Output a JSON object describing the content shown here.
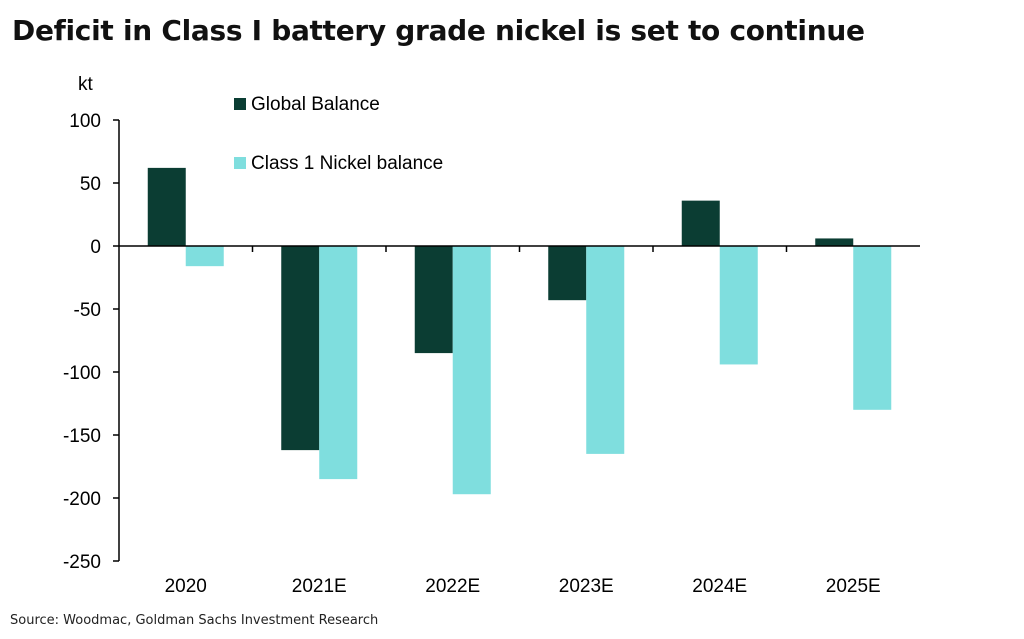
{
  "title": "Deficit in Class I battery grade nickel is set to continue",
  "source": "Source: Woodmac, Goldman Sachs Investment Research",
  "colors": {
    "global_balance": "#0b3d33",
    "class1_nickel_balance": "#7fdede"
  },
  "chart_data": {
    "type": "bar",
    "unit_label": "kt",
    "categories": [
      "2020",
      "2021E",
      "2022E",
      "2023E",
      "2024E",
      "2025E"
    ],
    "series": [
      {
        "name": "Global Balance",
        "values": [
          62,
          -162,
          -85,
          -43,
          36,
          6
        ]
      },
      {
        "name": "Class 1 Nickel balance",
        "values": [
          -16,
          -185,
          -197,
          -165,
          -94,
          -130
        ]
      }
    ],
    "ylim": [
      -250,
      100
    ],
    "yticks": [
      100,
      50,
      0,
      -50,
      -100,
      -150,
      -200,
      -250
    ],
    "legend_position": "top-left",
    "grid": false
  }
}
